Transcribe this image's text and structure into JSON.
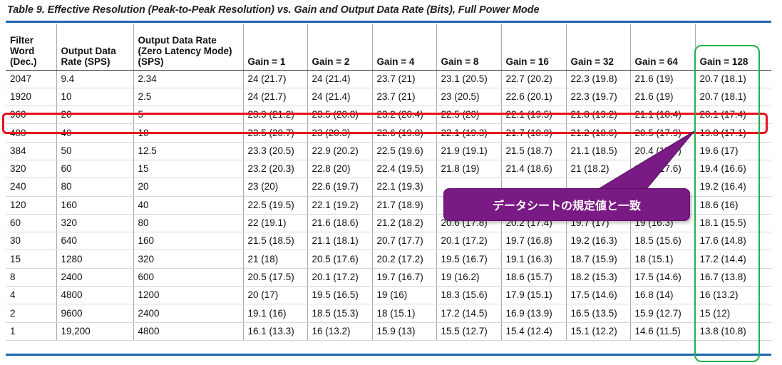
{
  "title": "Table 9. Effective Resolution (Peak-to-Peak Resolution) vs. Gain and Output Data Rate (Bits), Full Power Mode",
  "headers": [
    [
      "Filter",
      "Word",
      "(Dec.)"
    ],
    [
      "Output Data",
      "Rate (SPS)"
    ],
    [
      "Output Data Rate",
      "(Zero Latency Mode)",
      "(SPS)"
    ],
    [
      "Gain = 1"
    ],
    [
      "Gain = 2"
    ],
    [
      "Gain = 4"
    ],
    [
      "Gain = 8"
    ],
    [
      "Gain = 16"
    ],
    [
      "Gain = 32"
    ],
    [
      "Gain = 64"
    ],
    [
      "Gain = 128"
    ]
  ],
  "rows": [
    [
      "2047",
      "9.4",
      "2.34",
      "24 (21.7)",
      "24 (21.4)",
      "23.7 (21)",
      "23.1 (20.5)",
      "22.7 (20.2)",
      "22.3 (19.8)",
      "21.6 (19)",
      "20.7 (18.1)"
    ],
    [
      "1920",
      "10",
      "2.5",
      "24 (21.7)",
      "24 (21.4)",
      "23.7 (21)",
      "23 (20.5)",
      "22.6 (20.1)",
      "22.3 (19.7)",
      "21.6 (19)",
      "20.7 (18.1)"
    ],
    [
      "960",
      "20",
      "5",
      "23.9 (21.2)",
      "23.5 (20.8)",
      "23.2 (20.4)",
      "22.5 (20)",
      "22.1 (19.5)",
      "21.8 (19.2)",
      "21.1 (18.4)",
      "20.1 (17.4)"
    ],
    [
      "480",
      "40",
      "10",
      "23.5 (20.7)",
      "23 (20.3)",
      "22.6 (19.8)",
      "22.1 (19.3)",
      "21.7 (18.9)",
      "21.2 (18.6)",
      "20.5 (17.9)",
      "19.8 (17.1)"
    ],
    [
      "384",
      "50",
      "12.5",
      "23.3 (20.5)",
      "22.9 (20.2)",
      "22.5 (19.6)",
      "21.9 (19.1)",
      "21.5 (18.7)",
      "21.1 (18.5)",
      "20.4 (17.7)",
      "19.6 (17)"
    ],
    [
      "320",
      "60",
      "15",
      "23.2 (20.3)",
      "22.8 (20)",
      "22.4 (19.5)",
      "21.8 (19)",
      "21.4 (18.6)",
      "21 (18.2)",
      "20.2 (17.6)",
      "19.4 (16.6)"
    ],
    [
      "240",
      "80",
      "20",
      "23 (20)",
      "22.6 (19.7)",
      "22.1 (19.3)",
      "",
      "",
      "",
      "",
      "19.2 (16.4)"
    ],
    [
      "120",
      "160",
      "40",
      "22.5 (19.5)",
      "22.1 (19.2)",
      "21.7 (18.9)",
      "",
      "",
      "",
      "",
      "18.6 (16)"
    ],
    [
      "60",
      "320",
      "80",
      "22 (19.1)",
      "21.6 (18.6)",
      "21.2 (18.2)",
      "20.6 (17.8)",
      "20.2 (17.4)",
      "19.7 (17)",
      "19 (16.3)",
      "18.1 (15.5)"
    ],
    [
      "30",
      "640",
      "160",
      "21.5 (18.5)",
      "21.1 (18.1)",
      "20.7 (17.7)",
      "20.1 (17.2)",
      "19.7 (16.8)",
      "19.2 (16.3)",
      "18.5 (15.6)",
      "17.6 (14.8)"
    ],
    [
      "15",
      "1280",
      "320",
      "21 (18)",
      "20.5 (17.6)",
      "20.2 (17.2)",
      "19.5 (16.7)",
      "19.1 (16.3)",
      "18.7 (15.9)",
      "18 (15.1)",
      "17.2 (14.4)"
    ],
    [
      "8",
      "2400",
      "600",
      "20.5 (17.5)",
      "20.1 (17.2)",
      "19.7 (16.7)",
      "19 (16.2)",
      "18.6 (15.7)",
      "18.2 (15.3)",
      "17.5 (14.6)",
      "16.7 (13.8)"
    ],
    [
      "4",
      "4800",
      "1200",
      "20 (17)",
      "19.5 (16.5)",
      "19 (16)",
      "18.3 (15.6)",
      "17.9 (15.1)",
      "17.5 (14.6)",
      "16.8 (14)",
      "16 (13.2)"
    ],
    [
      "2",
      "9600",
      "2400",
      "19.1 (16)",
      "18.5 (15.3)",
      "18 (15.1)",
      "17.2 (14.5)",
      "16.9 (13.9)",
      "16.5 (13.5)",
      "15.9 (12.7)",
      "15 (12)"
    ],
    [
      "1",
      "19,200",
      "4800",
      "16.1 (13.3)",
      "16 (13.2)",
      "15.9 (13)",
      "15.5 (12.7)",
      "15.4 (12.4)",
      "15.1 (12.2)",
      "14.6 (11.5)",
      "13.8 (10.8)"
    ]
  ],
  "callout": {
    "text": "データシートの規定値と一致"
  },
  "colors": {
    "rule": "#1d64b0",
    "highlight_row": "#e8101d",
    "highlight_col": "#22b04b",
    "callout": "#7a1a84"
  }
}
